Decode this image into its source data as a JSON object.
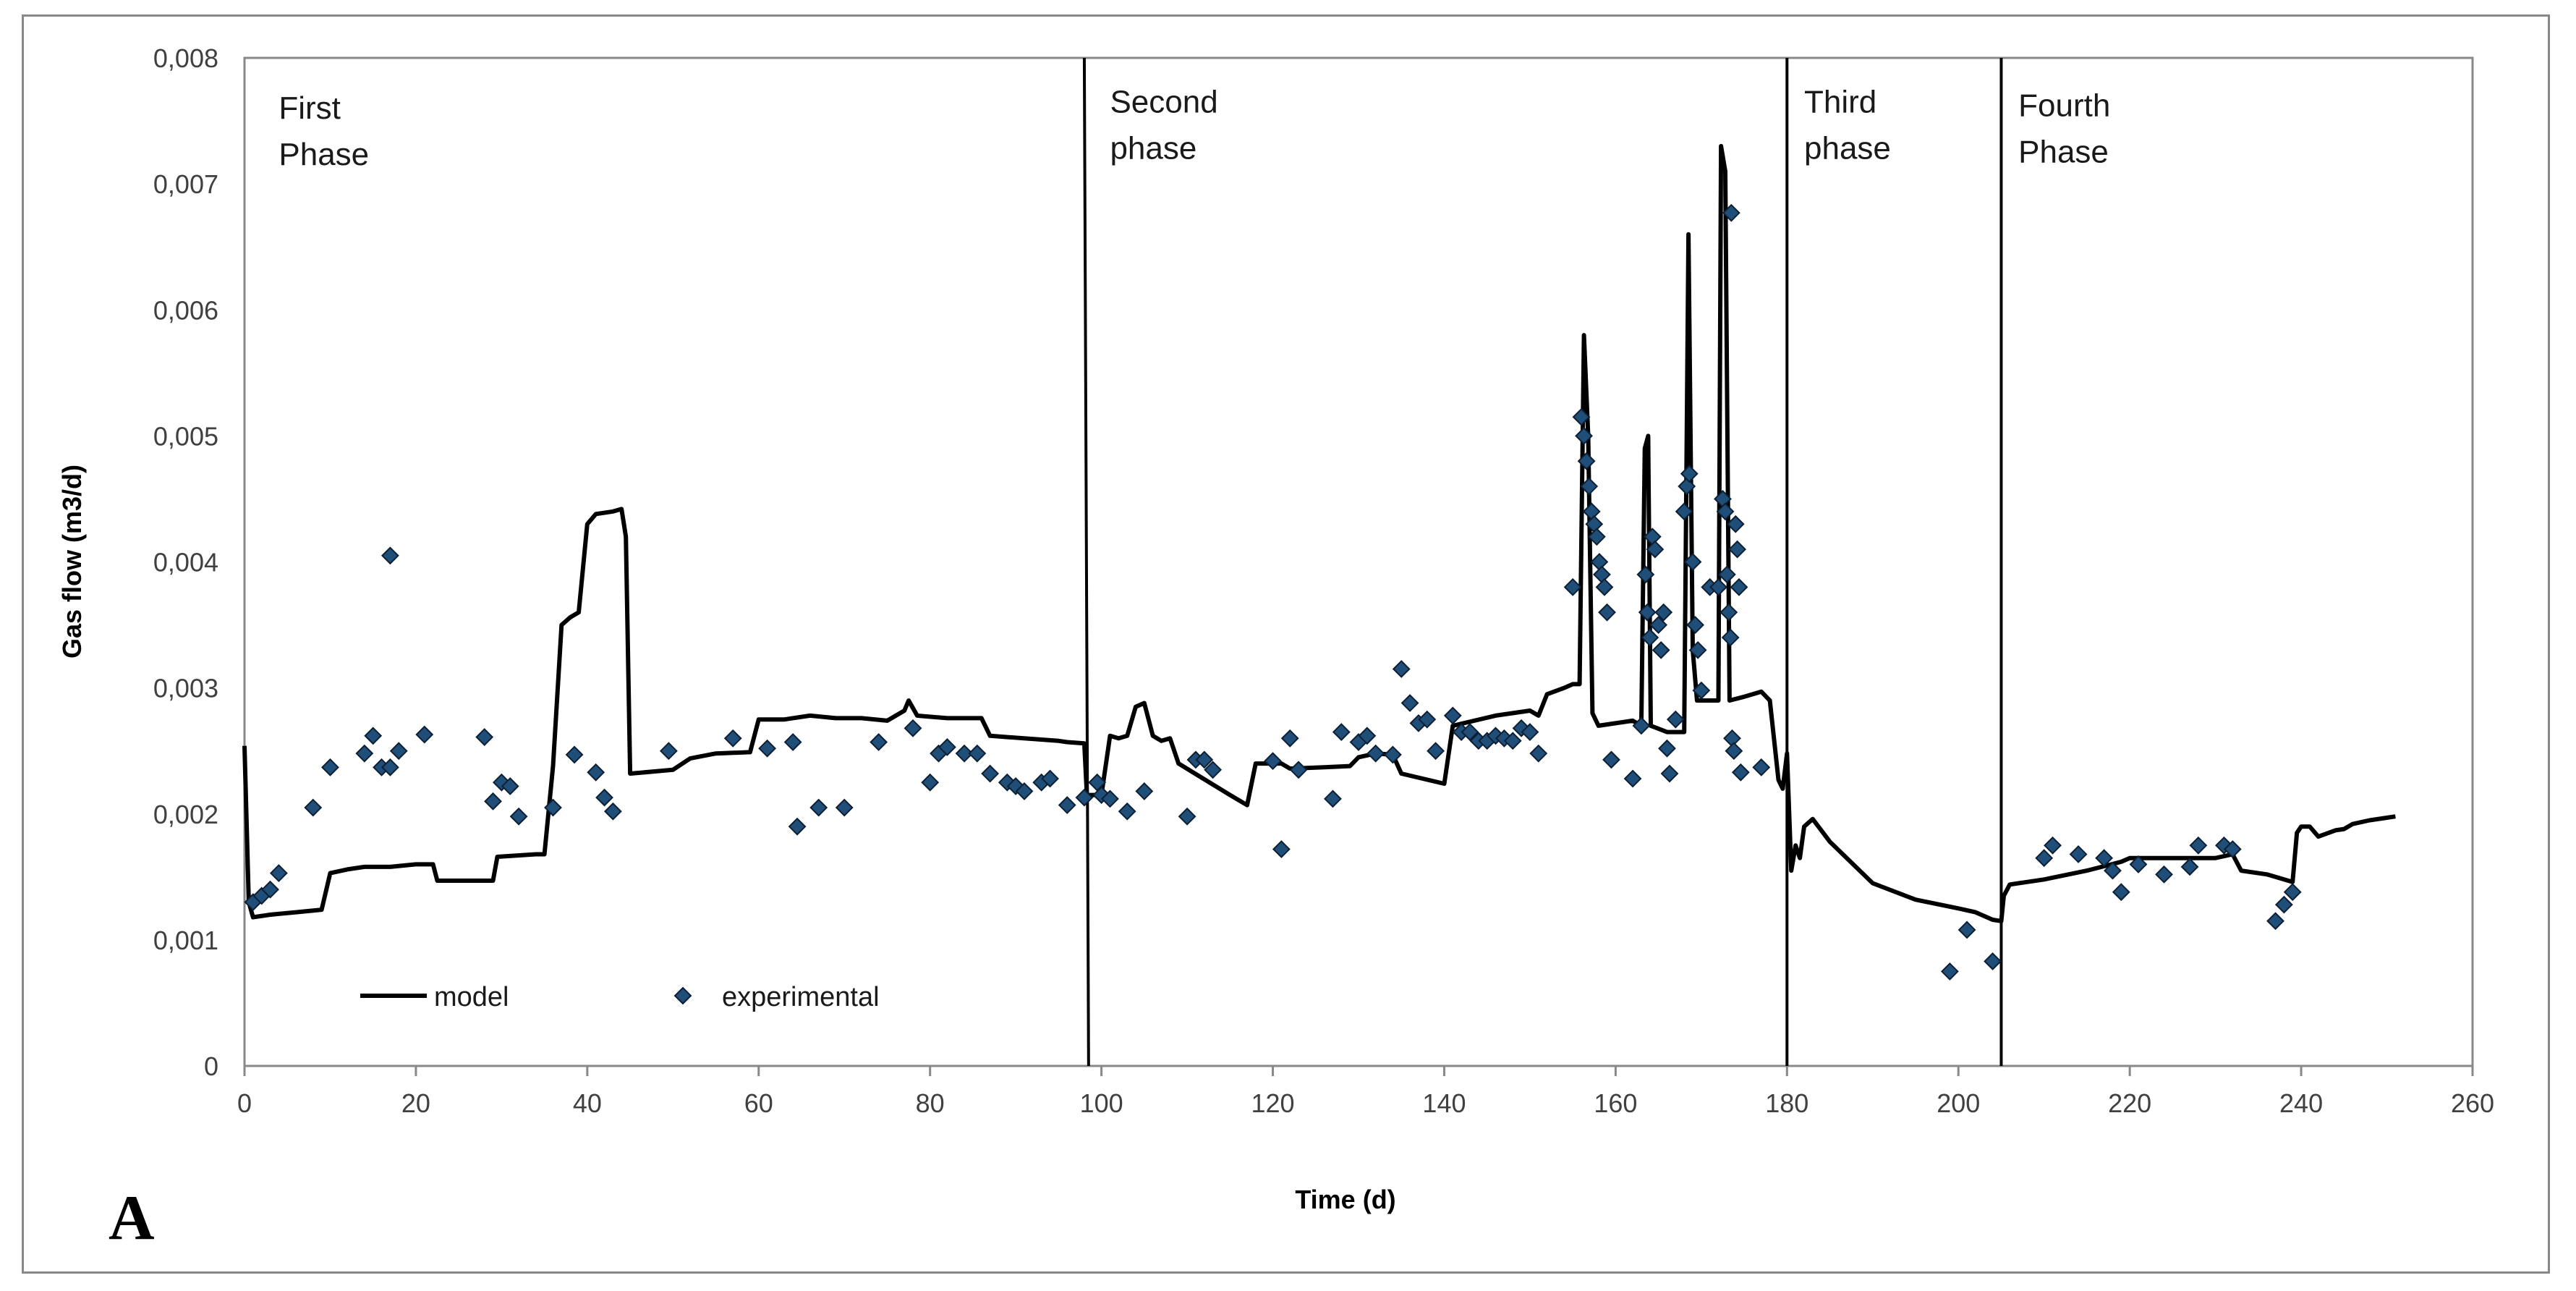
{
  "chart_data": {
    "type": "line+scatter",
    "title": "",
    "panel_label": "A",
    "xlabel": "Time (d)",
    "ylabel": "Gas flow (m3/d)",
    "xlim": [
      0,
      260
    ],
    "ylim": [
      0,
      0.008
    ],
    "x_ticks": [
      0,
      20,
      40,
      60,
      80,
      100,
      120,
      140,
      160,
      180,
      200,
      220,
      240,
      260
    ],
    "x_tick_labels": [
      "0",
      "20",
      "40",
      "60",
      "80",
      "100",
      "120",
      "140",
      "160",
      "180",
      "200",
      "220",
      "240",
      "260"
    ],
    "y_ticks": [
      0,
      0.001,
      0.002,
      0.003,
      0.004,
      0.005,
      0.006,
      0.007,
      0.008
    ],
    "y_tick_labels": [
      "0",
      "0,001",
      "0,002",
      "0,003",
      "0,004",
      "0,005",
      "0,006",
      "0,007",
      "0,008"
    ],
    "phase_boundaries": [
      {
        "x_top": 98,
        "x_bottom": 98.5
      },
      {
        "x_top": 180,
        "x_bottom": 180
      },
      {
        "x_top": 205,
        "x_bottom": 205
      }
    ],
    "phases": [
      {
        "lines": [
          "First",
          "Phase"
        ],
        "x": 4,
        "y": 0.00762
      },
      {
        "lines": [
          "Second",
          "phase"
        ],
        "x": 101,
        "y": 0.00767
      },
      {
        "lines": [
          "Third",
          "phase"
        ],
        "x": 182,
        "y": 0.00767
      },
      {
        "lines": [
          "Fourth",
          "Phase"
        ],
        "x": 207,
        "y": 0.00764
      }
    ],
    "legend": [
      {
        "name": "model",
        "marker": "line"
      },
      {
        "name": "experimental",
        "marker": "diamond"
      }
    ],
    "series": [
      {
        "name": "model",
        "kind": "line",
        "color": "#000000",
        "points": [
          [
            0,
            0.00254
          ],
          [
            0.5,
            0.0013
          ],
          [
            1,
            0.00118
          ],
          [
            3,
            0.0012
          ],
          [
            6,
            0.00122
          ],
          [
            9,
            0.00124
          ],
          [
            10,
            0.00153
          ],
          [
            12,
            0.00156
          ],
          [
            14,
            0.00158
          ],
          [
            17,
            0.00158
          ],
          [
            20,
            0.0016
          ],
          [
            22,
            0.0016
          ],
          [
            22.5,
            0.00147
          ],
          [
            29,
            0.00147
          ],
          [
            29.5,
            0.00166
          ],
          [
            34,
            0.00168
          ],
          [
            35,
            0.00168
          ],
          [
            36,
            0.00238
          ],
          [
            37,
            0.0035
          ],
          [
            38,
            0.00356
          ],
          [
            39,
            0.0036
          ],
          [
            40,
            0.0043
          ],
          [
            41,
            0.00438
          ],
          [
            43,
            0.0044
          ],
          [
            44,
            0.00442
          ],
          [
            44.5,
            0.0042
          ],
          [
            45,
            0.00232
          ],
          [
            50,
            0.00235
          ],
          [
            52,
            0.00244
          ],
          [
            55,
            0.00248
          ],
          [
            59,
            0.00249
          ],
          [
            60,
            0.00275
          ],
          [
            63,
            0.00275
          ],
          [
            66,
            0.00278
          ],
          [
            69,
            0.00276
          ],
          [
            72,
            0.00276
          ],
          [
            75,
            0.00274
          ],
          [
            77,
            0.00282
          ],
          [
            77.5,
            0.0029
          ],
          [
            78.5,
            0.00278
          ],
          [
            82,
            0.00276
          ],
          [
            86,
            0.00276
          ],
          [
            87,
            0.00262
          ],
          [
            95,
            0.00258
          ],
          [
            96,
            0.00257
          ],
          [
            98,
            0.00256
          ],
          [
            98.3,
            0.00215
          ],
          [
            100,
            0.00215
          ],
          [
            101,
            0.00262
          ],
          [
            102,
            0.0026
          ],
          [
            103,
            0.00262
          ],
          [
            104,
            0.00285
          ],
          [
            105,
            0.00288
          ],
          [
            106,
            0.00262
          ],
          [
            107,
            0.00258
          ],
          [
            108,
            0.0026
          ],
          [
            109,
            0.0024
          ],
          [
            115,
            0.00215
          ],
          [
            117,
            0.00207
          ],
          [
            118,
            0.0024
          ],
          [
            121,
            0.0024
          ],
          [
            122,
            0.00236
          ],
          [
            126,
            0.00237
          ],
          [
            129,
            0.00238
          ],
          [
            130,
            0.00245
          ],
          [
            132,
            0.00248
          ],
          [
            134,
            0.00247
          ],
          [
            135,
            0.00232
          ],
          [
            140,
            0.00224
          ],
          [
            141,
            0.0027
          ],
          [
            146,
            0.00278
          ],
          [
            150,
            0.00282
          ],
          [
            151,
            0.00278
          ],
          [
            152,
            0.00295
          ],
          [
            154,
            0.003
          ],
          [
            155,
            0.00303
          ],
          [
            155.8,
            0.00303
          ],
          [
            156.3,
            0.0058
          ],
          [
            156.8,
            0.005
          ],
          [
            157.3,
            0.0028
          ],
          [
            158,
            0.0027
          ],
          [
            160,
            0.00272
          ],
          [
            162,
            0.00274
          ],
          [
            163,
            0.0027
          ],
          [
            163.4,
            0.0049
          ],
          [
            163.8,
            0.005
          ],
          [
            164.1,
            0.0027
          ],
          [
            166,
            0.00265
          ],
          [
            168,
            0.00265
          ],
          [
            168.5,
            0.0066
          ],
          [
            169,
            0.0033
          ],
          [
            169.5,
            0.0029
          ],
          [
            172,
            0.0029
          ],
          [
            172.3,
            0.0073
          ],
          [
            172.8,
            0.0071
          ],
          [
            173.3,
            0.0029
          ],
          [
            175,
            0.00293
          ],
          [
            177,
            0.00297
          ],
          [
            178,
            0.0029
          ],
          [
            179,
            0.00227
          ],
          [
            179.5,
            0.0022
          ],
          [
            180,
            0.00248
          ],
          [
            180.5,
            0.00155
          ],
          [
            181,
            0.00175
          ],
          [
            181.5,
            0.00165
          ],
          [
            182,
            0.0019
          ],
          [
            183,
            0.00196
          ],
          [
            185,
            0.00178
          ],
          [
            190,
            0.00145
          ],
          [
            195,
            0.00132
          ],
          [
            200,
            0.00125
          ],
          [
            202,
            0.00122
          ],
          [
            204,
            0.00116
          ],
          [
            205,
            0.00115
          ],
          [
            205.3,
            0.00135
          ],
          [
            206,
            0.00144
          ],
          [
            210,
            0.00148
          ],
          [
            215,
            0.00155
          ],
          [
            219,
            0.00162
          ],
          [
            220,
            0.00165
          ],
          [
            225,
            0.00165
          ],
          [
            230,
            0.00165
          ],
          [
            232,
            0.00168
          ],
          [
            233,
            0.00155
          ],
          [
            236,
            0.00152
          ],
          [
            238,
            0.00148
          ],
          [
            239,
            0.00146
          ],
          [
            239.5,
            0.00185
          ],
          [
            240,
            0.0019
          ],
          [
            241,
            0.0019
          ],
          [
            242,
            0.00182
          ],
          [
            244,
            0.00187
          ],
          [
            245,
            0.00188
          ],
          [
            246,
            0.00192
          ],
          [
            248,
            0.00195
          ],
          [
            250,
            0.00197
          ],
          [
            251,
            0.00198
          ]
        ]
      },
      {
        "name": "experimental",
        "kind": "scatter",
        "color": "#1f4e79",
        "points": [
          [
            1,
            0.0013
          ],
          [
            2,
            0.00135
          ],
          [
            3,
            0.0014
          ],
          [
            4,
            0.00153
          ],
          [
            8,
            0.00205
          ],
          [
            10,
            0.00237
          ],
          [
            14,
            0.00248
          ],
          [
            15,
            0.00262
          ],
          [
            16,
            0.00237
          ],
          [
            17,
            0.00237
          ],
          [
            17,
            0.00405
          ],
          [
            18,
            0.0025
          ],
          [
            21,
            0.00263
          ],
          [
            28,
            0.00261
          ],
          [
            29,
            0.0021
          ],
          [
            30,
            0.00225
          ],
          [
            31,
            0.00222
          ],
          [
            32,
            0.00198
          ],
          [
            36,
            0.00205
          ],
          [
            38.5,
            0.00247
          ],
          [
            41,
            0.00233
          ],
          [
            42,
            0.00213
          ],
          [
            43,
            0.00202
          ],
          [
            49.5,
            0.0025
          ],
          [
            57,
            0.0026
          ],
          [
            61,
            0.00252
          ],
          [
            64,
            0.00257
          ],
          [
            64.5,
            0.0019
          ],
          [
            67,
            0.00205
          ],
          [
            70,
            0.00205
          ],
          [
            74,
            0.00257
          ],
          [
            78,
            0.00268
          ],
          [
            80,
            0.00225
          ],
          [
            81,
            0.00248
          ],
          [
            82,
            0.00253
          ],
          [
            84,
            0.00248
          ],
          [
            85.5,
            0.00248
          ],
          [
            87,
            0.00232
          ],
          [
            89,
            0.00225
          ],
          [
            90,
            0.00222
          ],
          [
            91,
            0.00218
          ],
          [
            93,
            0.00225
          ],
          [
            94,
            0.00228
          ],
          [
            96,
            0.00207
          ],
          [
            98,
            0.00213
          ],
          [
            99.5,
            0.00225
          ],
          [
            100,
            0.00215
          ],
          [
            101,
            0.00212
          ],
          [
            103,
            0.00202
          ],
          [
            105,
            0.00218
          ],
          [
            110,
            0.00198
          ],
          [
            111,
            0.00243
          ],
          [
            112,
            0.00243
          ],
          [
            113,
            0.00235
          ],
          [
            120,
            0.00242
          ],
          [
            121,
            0.00172
          ],
          [
            122,
            0.0026
          ],
          [
            123,
            0.00235
          ],
          [
            127,
            0.00212
          ],
          [
            128,
            0.00265
          ],
          [
            130,
            0.00257
          ],
          [
            131,
            0.00262
          ],
          [
            132,
            0.00248
          ],
          [
            134,
            0.00247
          ],
          [
            135,
            0.00315
          ],
          [
            136,
            0.00288
          ],
          [
            137,
            0.00272
          ],
          [
            138,
            0.00275
          ],
          [
            139,
            0.0025
          ],
          [
            141,
            0.00278
          ],
          [
            142,
            0.00265
          ],
          [
            143,
            0.00265
          ],
          [
            144,
            0.00258
          ],
          [
            145,
            0.00258
          ],
          [
            146,
            0.00262
          ],
          [
            147,
            0.0026
          ],
          [
            148,
            0.00258
          ],
          [
            149,
            0.00268
          ],
          [
            150,
            0.00265
          ],
          [
            151,
            0.00248
          ],
          [
            155,
            0.0038
          ],
          [
            156,
            0.00515
          ],
          [
            156.3,
            0.005
          ],
          [
            156.6,
            0.0048
          ],
          [
            156.9,
            0.0046
          ],
          [
            157.2,
            0.0044
          ],
          [
            157.5,
            0.0043
          ],
          [
            157.8,
            0.0042
          ],
          [
            158.1,
            0.004
          ],
          [
            158.4,
            0.0039
          ],
          [
            158.7,
            0.0038
          ],
          [
            159,
            0.0036
          ],
          [
            159.5,
            0.00243
          ],
          [
            162,
            0.00228
          ],
          [
            163,
            0.0027
          ],
          [
            163.5,
            0.0039
          ],
          [
            163.7,
            0.0036
          ],
          [
            164,
            0.0034
          ],
          [
            164.3,
            0.0042
          ],
          [
            164.6,
            0.0041
          ],
          [
            165,
            0.0035
          ],
          [
            165.3,
            0.0033
          ],
          [
            165.6,
            0.0036
          ],
          [
            166,
            0.00252
          ],
          [
            166.3,
            0.00232
          ],
          [
            167,
            0.00275
          ],
          [
            168,
            0.0044
          ],
          [
            168.3,
            0.0046
          ],
          [
            168.6,
            0.0047
          ],
          [
            169,
            0.004
          ],
          [
            169.3,
            0.0035
          ],
          [
            169.6,
            0.0033
          ],
          [
            170,
            0.00298
          ],
          [
            171,
            0.0038
          ],
          [
            172,
            0.0038
          ],
          [
            172.5,
            0.0045
          ],
          [
            172.8,
            0.0044
          ],
          [
            173,
            0.0039
          ],
          [
            173.2,
            0.0036
          ],
          [
            173.4,
            0.0034
          ],
          [
            173.6,
            0.0026
          ],
          [
            173.8,
            0.0025
          ],
          [
            174,
            0.0043
          ],
          [
            174.2,
            0.0041
          ],
          [
            174.4,
            0.0038
          ],
          [
            174.6,
            0.00233
          ],
          [
            173.5,
            0.00677
          ],
          [
            177,
            0.00237
          ],
          [
            199,
            0.00075
          ],
          [
            201,
            0.00108
          ],
          [
            204,
            0.00083
          ],
          [
            210,
            0.00165
          ],
          [
            211,
            0.00175
          ],
          [
            214,
            0.00168
          ],
          [
            217,
            0.00165
          ],
          [
            218,
            0.00155
          ],
          [
            219,
            0.00138
          ],
          [
            221,
            0.0016
          ],
          [
            224,
            0.00152
          ],
          [
            227,
            0.00158
          ],
          [
            228,
            0.00175
          ],
          [
            231,
            0.00175
          ],
          [
            232,
            0.00172
          ],
          [
            237,
            0.00115
          ],
          [
            238,
            0.00128
          ],
          [
            239,
            0.00138
          ]
        ]
      }
    ]
  }
}
